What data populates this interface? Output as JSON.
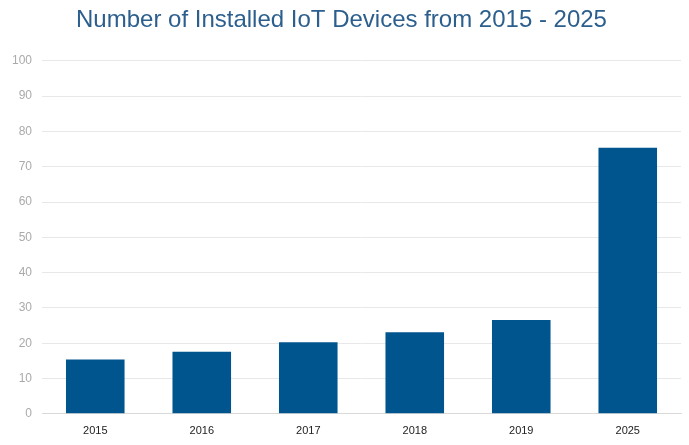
{
  "chart_data": {
    "type": "bar",
    "title": "Number of Installed IoT Devices from 2015 - 2025",
    "categories": [
      "2015",
      "2016",
      "2017",
      "2018",
      "2019",
      "2025"
    ],
    "values": [
      15.4,
      17.6,
      20.3,
      23.1,
      26.6,
      75.4
    ],
    "color": "#00558f",
    "ylim": [
      0,
      100
    ],
    "yticks": [
      0,
      10,
      20,
      30,
      40,
      50,
      60,
      70,
      80,
      90,
      100
    ],
    "grid": true
  }
}
